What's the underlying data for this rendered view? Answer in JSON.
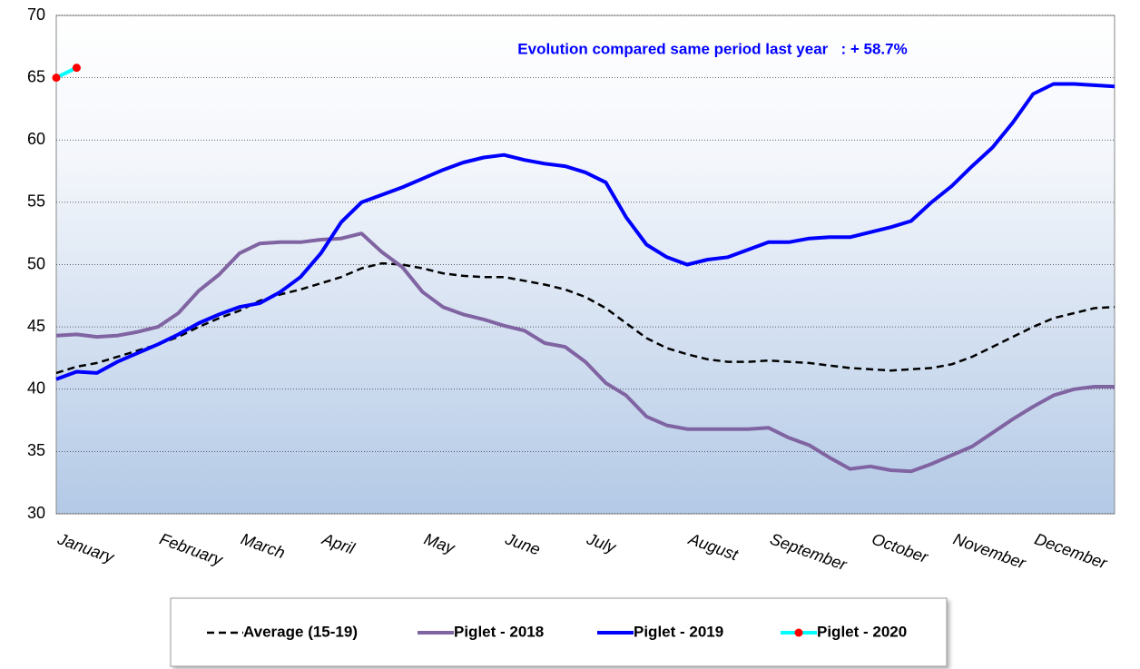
{
  "chart_data": {
    "type": "line",
    "annotation": "Evolution compared same period last year   : + 58.7%",
    "categories": [
      "January",
      null,
      null,
      null,
      null,
      "February",
      null,
      null,
      null,
      "March",
      null,
      null,
      null,
      "April",
      null,
      null,
      null,
      null,
      "May",
      null,
      null,
      null,
      "June",
      null,
      null,
      null,
      "July",
      null,
      null,
      null,
      null,
      "August",
      null,
      null,
      null,
      "September",
      null,
      null,
      null,
      null,
      "October",
      null,
      null,
      null,
      "November",
      null,
      null,
      null,
      "December",
      null,
      null,
      null,
      null
    ],
    "ylim": [
      30,
      70
    ],
    "yticks": [
      30,
      35,
      40,
      45,
      50,
      55,
      60,
      65,
      70
    ],
    "grid": true,
    "legend": "bottom",
    "series": [
      {
        "name": "Average (15-19)",
        "color": "#000000",
        "dashed": true,
        "values": [
          41.3,
          41.8,
          42.1,
          42.6,
          43.1,
          43.6,
          44.2,
          45.0,
          45.7,
          46.3,
          47.1,
          47.6,
          48.0,
          48.5,
          49.0,
          49.7,
          50.1,
          50.0,
          49.7,
          49.3,
          49.1,
          49.0,
          49.0,
          48.7,
          48.4,
          48.0,
          47.4,
          46.5,
          45.3,
          44.1,
          43.3,
          42.8,
          42.4,
          42.2,
          42.2,
          42.3,
          42.2,
          42.1,
          41.9,
          41.7,
          41.6,
          41.5,
          41.6,
          41.7,
          42.0,
          42.6,
          43.4,
          44.2,
          45.0,
          45.7,
          46.1,
          46.5,
          46.6
        ]
      },
      {
        "name": "Piglet - 2018",
        "color": "#8064a2",
        "values": [
          44.3,
          44.4,
          44.2,
          44.3,
          44.6,
          45.0,
          46.1,
          47.9,
          49.2,
          50.9,
          51.7,
          51.8,
          51.8,
          52.0,
          52.1,
          52.5,
          51.0,
          49.8,
          47.8,
          46.6,
          46.0,
          45.6,
          45.1,
          44.7,
          43.7,
          43.4,
          42.2,
          40.5,
          39.5,
          37.8,
          37.1,
          36.8,
          36.8,
          36.8,
          36.8,
          36.9,
          36.1,
          35.5,
          34.5,
          33.6,
          33.8,
          33.5,
          33.4,
          34.0,
          34.7,
          35.4,
          36.5,
          37.6,
          38.6,
          39.5,
          40.0,
          40.2,
          40.2
        ]
      },
      {
        "name": "Piglet - 2019",
        "color": "#0000ff",
        "values": [
          40.8,
          41.4,
          41.3,
          42.2,
          42.9,
          43.6,
          44.4,
          45.3,
          46.0,
          46.6,
          46.9,
          47.8,
          49.0,
          50.9,
          53.4,
          55.0,
          55.6,
          56.2,
          56.9,
          57.6,
          58.2,
          58.6,
          58.8,
          58.4,
          58.1,
          57.9,
          57.4,
          56.6,
          53.8,
          51.6,
          50.6,
          50.0,
          50.4,
          50.6,
          51.2,
          51.8,
          51.8,
          52.1,
          52.2,
          52.2,
          52.6,
          53.0,
          53.5,
          55.0,
          56.3,
          57.9,
          59.4,
          61.4,
          63.7,
          64.5,
          64.5,
          64.4,
          64.3
        ]
      },
      {
        "name": "Piglet - 2020",
        "color": "#00ffff",
        "marker_color": "#ff0000",
        "values": [
          65.0,
          65.8,
          null,
          null,
          null,
          null,
          null,
          null,
          null,
          null,
          null,
          null,
          null,
          null,
          null,
          null,
          null,
          null,
          null,
          null,
          null,
          null,
          null,
          null,
          null,
          null,
          null,
          null,
          null,
          null,
          null,
          null,
          null,
          null,
          null,
          null,
          null,
          null,
          null,
          null,
          null,
          null,
          null,
          null,
          null,
          null,
          null,
          null,
          null,
          null,
          null,
          null,
          null
        ]
      }
    ]
  }
}
